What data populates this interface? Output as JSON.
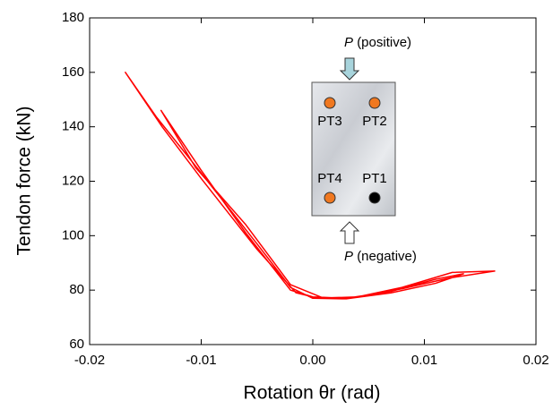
{
  "chart_data": {
    "type": "line",
    "xlabel": "Rotation θr (rad)",
    "ylabel": "Tendon force (kN)",
    "xlim": [
      -0.02,
      0.02
    ],
    "xticks": [
      -0.02,
      -0.01,
      {
        "value": 0,
        "label": "0.00"
      },
      0.01,
      0.02
    ],
    "ylim": [
      60,
      180
    ],
    "yticks": [
      60,
      80,
      100,
      120,
      140,
      160,
      180
    ],
    "series": [
      {
        "color": "#ff0000",
        "x": [
          0,
          0.004,
          0.008,
          0.0123,
          0.0163,
          0.0125,
          0.008,
          0.004,
          0.0005,
          -0.0015,
          -0.005,
          -0.01,
          -0.0135,
          -0.0168,
          -0.014,
          -0.01,
          -0.005,
          -0.002,
          0,
          0.003,
          0.007,
          0.011,
          0.0135,
          0.011,
          0.007,
          0.003,
          0,
          -0.002,
          -0.006,
          -0.01,
          -0.0136,
          -0.0105,
          -0.006,
          -0.002,
          0.001
        ],
        "values": [
          77,
          77.5,
          80.5,
          84.5,
          87,
          86.5,
          81,
          77.5,
          77,
          79,
          95,
          121,
          140,
          160,
          143.5,
          123,
          97,
          81,
          77,
          76.8,
          79,
          82.5,
          86,
          84,
          79.5,
          77,
          77.5,
          80,
          101,
          124,
          146,
          125,
          104,
          82,
          77
        ]
      }
    ],
    "annotations": {
      "top": {
        "symbol": "P",
        "text": "(positive)"
      },
      "bottom": {
        "symbol": "P",
        "text": "(negative)"
      },
      "points": [
        {
          "label": "PT3",
          "color": "#f07820"
        },
        {
          "label": "PT2",
          "color": "#f07820"
        },
        {
          "label": "PT4",
          "color": "#f07820"
        },
        {
          "label": "PT1",
          "color": "#000000"
        }
      ]
    }
  }
}
